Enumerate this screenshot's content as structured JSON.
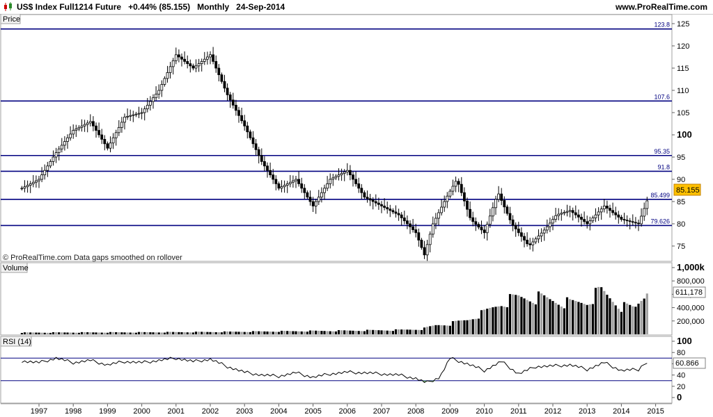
{
  "header": {
    "instrument": "US$ Index Full1214 Future",
    "change": "+0.44% (85.155)",
    "period": "Monthly",
    "date": "24-Sep-2014",
    "site": "www.ProRealTime.com",
    "app_icon": "candlestick-icon"
  },
  "colors": {
    "level_line": "#000080",
    "up_candle": "#ffffff",
    "down_candle": "#000000",
    "price_badge": "#ffc000",
    "volume_up": "#a0a0a0",
    "volume_down": "#000000",
    "rsi_oversold_fill": "#7cc07c",
    "grid": "#e0e0e0"
  },
  "price_panel": {
    "label": "Price",
    "watermark": "© ProRealTime.com  Data gaps smoothed on rollover",
    "last_price": "85.155",
    "levels": [
      {
        "value": 123.8,
        "label": "123.8"
      },
      {
        "value": 107.6,
        "label": "107.6"
      },
      {
        "value": 95.35,
        "label": "95.35"
      },
      {
        "value": 91.8,
        "label": "91.8"
      },
      {
        "value": 85.499,
        "label": "85.499"
      },
      {
        "value": 79.626,
        "label": "79.626"
      }
    ]
  },
  "volume_panel": {
    "label": "Volume",
    "last_value": "611,178",
    "ticks": [
      "1,000k",
      "800,000",
      "600,000",
      "400,000",
      "200,000"
    ]
  },
  "rsi_panel": {
    "label": "RSI (14)",
    "last_value": "60.866",
    "ticks": [
      "100",
      "80",
      "60",
      "40",
      "20",
      "0"
    ]
  },
  "chart_data": [
    {
      "type": "line",
      "title": "US$ Index Full1214 Future",
      "series": [
        {
          "name": "Price",
          "x": [
            1996.5,
            1997.0,
            1997.5,
            1998.0,
            1998.5,
            1999.0,
            1999.5,
            2000.0,
            2000.5,
            2001.0,
            2001.5,
            2002.0,
            2002.5,
            2003.0,
            2003.5,
            2004.0,
            2004.5,
            2005.0,
            2005.5,
            2006.0,
            2006.5,
            2007.0,
            2007.5,
            2008.0,
            2008.25,
            2008.5,
            2008.9,
            2009.2,
            2009.6,
            2010.0,
            2010.4,
            2010.8,
            2011.3,
            2011.8,
            2012.1,
            2012.5,
            2013.0,
            2013.5,
            2014.0,
            2014.5,
            2014.75
          ],
          "y": [
            88,
            90,
            96,
            101,
            103,
            97,
            104,
            105,
            110,
            118,
            115,
            118,
            109,
            102,
            94,
            88,
            90,
            84,
            90,
            92,
            86,
            84,
            82,
            78,
            73,
            80,
            86,
            90,
            81,
            78,
            87,
            80,
            75,
            79,
            82,
            83,
            80,
            84,
            81,
            80,
            85.155
          ]
        }
      ],
      "ylim": [
        73,
        126
      ],
      "y_ticks": [
        125,
        120,
        115,
        110,
        105,
        100,
        95,
        90,
        85,
        80,
        75
      ],
      "x_ticks": [
        "1997",
        "1998",
        "1999",
        "2000",
        "2001",
        "2002",
        "2003",
        "2004",
        "2005",
        "2006",
        "2007",
        "2008",
        "2009",
        "2010",
        "2011",
        "2012",
        "2013",
        "2014",
        "2015"
      ],
      "grid": false
    },
    {
      "type": "bar",
      "title": "Volume",
      "x": [
        1996.5,
        1998.0,
        2000.0,
        2002.0,
        2004.0,
        2006.0,
        2007.5,
        2008.2,
        2008.6,
        2009.0,
        2009.5,
        2010.0,
        2010.5,
        2011.0,
        2011.5,
        2012.0,
        2012.5,
        2013.0,
        2013.4,
        2013.7,
        2014.0,
        2014.4,
        2014.67
      ],
      "values": [
        25000,
        28000,
        30000,
        35000,
        45000,
        55000,
        65000,
        80000,
        140000,
        160000,
        220000,
        330000,
        480000,
        560000,
        560000,
        520000,
        470000,
        500000,
        660000,
        550000,
        420000,
        400000,
        611178
      ],
      "ylim": [
        0,
        1000000
      ]
    },
    {
      "type": "line",
      "title": "RSI (14)",
      "x": [
        1996.5,
        1997.0,
        1997.5,
        1998.0,
        1998.5,
        1999.0,
        1999.5,
        2000.0,
        2000.5,
        2001.0,
        2001.5,
        2002.0,
        2002.5,
        2003.0,
        2003.5,
        2004.0,
        2004.5,
        2005.0,
        2005.5,
        2006.0,
        2006.5,
        2007.0,
        2007.5,
        2008.0,
        2008.3,
        2008.7,
        2009.0,
        2009.5,
        2010.0,
        2010.5,
        2011.0,
        2011.5,
        2012.0,
        2012.5,
        2013.0,
        2013.5,
        2014.0,
        2014.5,
        2014.67
      ],
      "values": [
        65,
        62,
        70,
        62,
        66,
        58,
        64,
        62,
        66,
        70,
        64,
        68,
        55,
        45,
        40,
        38,
        44,
        36,
        42,
        45,
        44,
        42,
        40,
        34,
        26,
        36,
        70,
        60,
        48,
        64,
        42,
        55,
        56,
        58,
        50,
        62,
        48,
        50,
        60.866
      ],
      "ylim": [
        0,
        100
      ],
      "reference_lines": [
        70,
        30
      ]
    }
  ]
}
